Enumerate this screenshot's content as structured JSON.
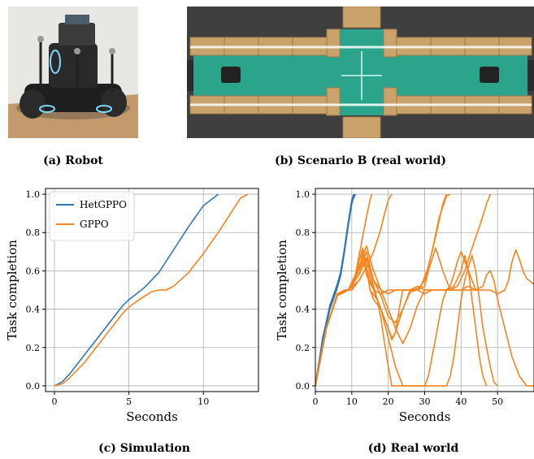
{
  "captions": {
    "a": "(a) Robot",
    "b": "(b) Scenario B (real world)",
    "c": "(c) Simulation",
    "d": "(d) Real world"
  },
  "colors": {
    "hetgppo": "#2f77b4",
    "gppo": "#f7841c",
    "arena_floor": "#2aa58c",
    "boxes": "#c9a26c"
  },
  "chart_data": [
    {
      "type": "line",
      "xlabel": "Seconds",
      "ylabel": "Task completion",
      "xlim": [
        -0.6,
        13.7
      ],
      "ylim": [
        -0.03,
        1.03
      ],
      "xticks": [
        0,
        5,
        10
      ],
      "yticks": [
        0.0,
        0.2,
        0.4,
        0.6,
        0.8,
        1.0
      ],
      "xtick_labels": [
        "0",
        "5",
        "10"
      ],
      "ytick_labels": [
        "0.0",
        "0.2",
        "0.4",
        "0.6",
        "0.8",
        "1.0"
      ],
      "grid": true,
      "legend": "top-left",
      "series": [
        {
          "name": "HetGPPO",
          "color": "#2f77b4",
          "x": [
            0,
            0.5,
            1,
            2,
            3,
            4,
            4.6,
            5,
            5.5,
            6,
            6.5,
            7,
            8,
            9,
            10,
            11
          ],
          "y": [
            0,
            0.02,
            0.06,
            0.16,
            0.26,
            0.36,
            0.42,
            0.45,
            0.48,
            0.51,
            0.55,
            0.59,
            0.71,
            0.83,
            0.94,
            1.0
          ]
        },
        {
          "name": "GPPO",
          "color": "#f7841c",
          "x": [
            0,
            0.5,
            1,
            2,
            3,
            4,
            4.6,
            5,
            5.5,
            6,
            6.5,
            7,
            7.5,
            8,
            9,
            10,
            11,
            12,
            12.5,
            13
          ],
          "y": [
            0,
            0.01,
            0.04,
            0.12,
            0.22,
            0.32,
            0.38,
            0.41,
            0.44,
            0.465,
            0.49,
            0.5,
            0.5,
            0.52,
            0.59,
            0.69,
            0.8,
            0.92,
            0.98,
            1.0
          ]
        }
      ]
    },
    {
      "type": "line",
      "xlabel": "Seconds",
      "ylabel": "Task completion",
      "xlim": [
        0,
        60
      ],
      "ylim": [
        -0.03,
        1.03
      ],
      "xticks": [
        0,
        10,
        20,
        30,
        40,
        50
      ],
      "yticks": [
        0.0,
        0.2,
        0.4,
        0.6,
        0.8,
        1.0
      ],
      "xtick_labels": [
        "0",
        "10",
        "20",
        "30",
        "40",
        "50"
      ],
      "ytick_labels": [
        "0.0",
        "0.2",
        "0.4",
        "0.6",
        "0.8",
        "1.0"
      ],
      "grid": true,
      "series": [
        {
          "color": "#2f77b4",
          "x": [
            0,
            2,
            4,
            6,
            7,
            8,
            9,
            10,
            10.5
          ],
          "y": [
            0,
            0.25,
            0.42,
            0.53,
            0.6,
            0.72,
            0.85,
            0.97,
            1.0
          ]
        },
        {
          "color": "#2f77b4",
          "x": [
            0,
            2,
            4,
            6,
            7,
            8,
            9,
            10,
            10.8
          ],
          "y": [
            0,
            0.23,
            0.4,
            0.51,
            0.58,
            0.7,
            0.83,
            0.95,
            1.0
          ]
        },
        {
          "color": "#2f77b4",
          "x": [
            0,
            2,
            4,
            6,
            7,
            8,
            9,
            10,
            11
          ],
          "y": [
            0,
            0.24,
            0.41,
            0.52,
            0.59,
            0.71,
            0.84,
            0.96,
            1.0
          ]
        },
        {
          "color": "#f7841c",
          "x": [
            0,
            3,
            6,
            8,
            10,
            11,
            12,
            13,
            14,
            15,
            15.5
          ],
          "y": [
            0,
            0.3,
            0.48,
            0.5,
            0.5,
            0.58,
            0.68,
            0.78,
            0.88,
            0.97,
            1.0
          ]
        },
        {
          "color": "#f7841c",
          "x": [
            0,
            3,
            6,
            8,
            10,
            12,
            14,
            16,
            18,
            19,
            20,
            21
          ],
          "y": [
            0,
            0.3,
            0.47,
            0.5,
            0.5,
            0.55,
            0.62,
            0.7,
            0.82,
            0.9,
            0.97,
            1.0
          ]
        },
        {
          "color": "#f7841c",
          "x": [
            0,
            3,
            6,
            9,
            11,
            12,
            13,
            14,
            15,
            16,
            18,
            20,
            21,
            22,
            23,
            24,
            25,
            27,
            29,
            31,
            33,
            35,
            36
          ],
          "y": [
            0,
            0.3,
            0.48,
            0.5,
            0.55,
            0.65,
            0.72,
            0.62,
            0.5,
            0.45,
            0.4,
            0.3,
            0.24,
            0.28,
            0.4,
            0.5,
            0.5,
            0.5,
            0.52,
            0.62,
            0.78,
            0.95,
            1.0
          ]
        },
        {
          "color": "#f7841c",
          "x": [
            0,
            3,
            6,
            9,
            12,
            13,
            14,
            15,
            17,
            19,
            21,
            22,
            24,
            26,
            28,
            30,
            32,
            34,
            36,
            37
          ],
          "y": [
            0,
            0.3,
            0.47,
            0.5,
            0.6,
            0.68,
            0.62,
            0.5,
            0.45,
            0.35,
            0.25,
            0.28,
            0.4,
            0.5,
            0.5,
            0.55,
            0.7,
            0.88,
            0.99,
            1.0
          ]
        },
        {
          "color": "#f7841c",
          "x": [
            0,
            3,
            6,
            9,
            12,
            14,
            16,
            18,
            20,
            22,
            24,
            26,
            28,
            30,
            31,
            33,
            35,
            37,
            39,
            41,
            43,
            45,
            47,
            48
          ],
          "y": [
            0,
            0.3,
            0.47,
            0.5,
            0.6,
            0.7,
            0.55,
            0.47,
            0.36,
            0.33,
            0.4,
            0.49,
            0.5,
            0.52,
            0.6,
            0.72,
            0.6,
            0.5,
            0.52,
            0.6,
            0.72,
            0.83,
            0.95,
            1.0
          ]
        },
        {
          "color": "#f7841c",
          "x": [
            0,
            3,
            6,
            9,
            12,
            13,
            14,
            16,
            18,
            20,
            22,
            24,
            26,
            28,
            30,
            31,
            32,
            33,
            34,
            35,
            36,
            37,
            38,
            39,
            40,
            42,
            44
          ],
          "y": [
            0,
            0.3,
            0.48,
            0.5,
            0.6,
            0.7,
            0.58,
            0.5,
            0.4,
            0.25,
            0.1,
            0.0,
            0.0,
            0.0,
            0.0,
            0.05,
            0.15,
            0.25,
            0.35,
            0.45,
            0.5,
            0.52,
            0.58,
            0.65,
            0.7,
            0.6,
            0.5
          ]
        },
        {
          "color": "#f7841c",
          "x": [
            0,
            3,
            6,
            9,
            12,
            14,
            16,
            17,
            18,
            19,
            20,
            21,
            22,
            24,
            26,
            28,
            30,
            32,
            34,
            36,
            37,
            38,
            39,
            40,
            41,
            42,
            43,
            44,
            45,
            46,
            47,
            48,
            49,
            50
          ],
          "y": [
            0,
            0.3,
            0.47,
            0.5,
            0.58,
            0.66,
            0.52,
            0.45,
            0.35,
            0.22,
            0.1,
            0.0,
            0.0,
            0.0,
            0.0,
            0.0,
            0.0,
            0.0,
            0.0,
            0.0,
            0.05,
            0.15,
            0.3,
            0.45,
            0.55,
            0.62,
            0.68,
            0.6,
            0.45,
            0.3,
            0.2,
            0.1,
            0.02,
            0.0
          ]
        },
        {
          "color": "#f7841c",
          "x": [
            0,
            3,
            6,
            9,
            12,
            14,
            16,
            18,
            20,
            22,
            24,
            26,
            28,
            30,
            32,
            34,
            36,
            38,
            40,
            41,
            42,
            43,
            44,
            45,
            46,
            47
          ],
          "y": [
            0,
            0.3,
            0.48,
            0.5,
            0.62,
            0.73,
            0.6,
            0.5,
            0.4,
            0.3,
            0.22,
            0.3,
            0.42,
            0.5,
            0.5,
            0.5,
            0.5,
            0.52,
            0.6,
            0.68,
            0.6,
            0.45,
            0.3,
            0.15,
            0.05,
            0.0
          ]
        },
        {
          "color": "#f7841c",
          "x": [
            0,
            3,
            6,
            9,
            12,
            14,
            16,
            18,
            20,
            22,
            24,
            26,
            28,
            30,
            32,
            34,
            36,
            38,
            40,
            42,
            44,
            46,
            48,
            50,
            52,
            53,
            54,
            55,
            56,
            57,
            58,
            60
          ],
          "y": [
            0,
            0.3,
            0.47,
            0.5,
            0.55,
            0.62,
            0.5,
            0.48,
            0.5,
            0.5,
            0.5,
            0.5,
            0.5,
            0.48,
            0.5,
            0.5,
            0.5,
            0.5,
            0.5,
            0.52,
            0.5,
            0.5,
            0.5,
            0.48,
            0.5,
            0.55,
            0.65,
            0.71,
            0.66,
            0.6,
            0.56,
            0.53
          ]
        },
        {
          "color": "#f7841c",
          "x": [
            0,
            3,
            6,
            9,
            12,
            14,
            16,
            18,
            20,
            22,
            24,
            26,
            28,
            30,
            32,
            34,
            36,
            38,
            40,
            42,
            44,
            46,
            47,
            48,
            49,
            50,
            52,
            54,
            56,
            58,
            60
          ],
          "y": [
            0,
            0.3,
            0.48,
            0.5,
            0.6,
            0.67,
            0.55,
            0.5,
            0.48,
            0.5,
            0.5,
            0.5,
            0.52,
            0.5,
            0.5,
            0.5,
            0.5,
            0.5,
            0.5,
            0.5,
            0.5,
            0.52,
            0.58,
            0.6,
            0.55,
            0.45,
            0.3,
            0.15,
            0.05,
            0.0,
            0.0
          ]
        }
      ]
    }
  ]
}
